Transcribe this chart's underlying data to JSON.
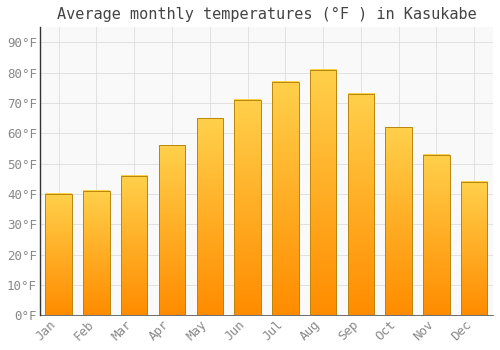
{
  "title": "Average monthly temperatures (°F ) in Kasukabe",
  "months": [
    "Jan",
    "Feb",
    "Mar",
    "Apr",
    "May",
    "Jun",
    "Jul",
    "Aug",
    "Sep",
    "Oct",
    "Nov",
    "Dec"
  ],
  "values": [
    40,
    41,
    46,
    56,
    65,
    71,
    77,
    81,
    73,
    62,
    53,
    44
  ],
  "bar_color_top": "#FFD04B",
  "bar_color_bottom": "#FF8C00",
  "bar_edge_color": "#B8860B",
  "background_color": "#FFFFFF",
  "plot_bg_color": "#F9F9F9",
  "grid_color": "#DDDDDD",
  "yticks": [
    0,
    10,
    20,
    30,
    40,
    50,
    60,
    70,
    80,
    90
  ],
  "ylim": [
    0,
    95
  ],
  "title_fontsize": 11,
  "tick_fontsize": 9,
  "tick_color": "#888888",
  "title_color": "#444444",
  "spine_color": "#333333"
}
